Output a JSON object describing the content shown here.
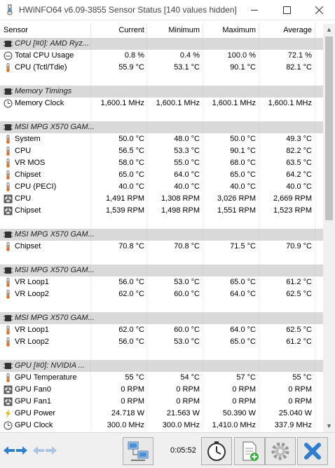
{
  "window": {
    "title": "HWiNFO64 v6.09-3855 Sensor Status [140 values hidden]"
  },
  "columns": {
    "sensor": "Sensor",
    "current": "Current",
    "minimum": "Minimum",
    "maximum": "Maximum",
    "average": "Average"
  },
  "rows": [
    {
      "type": "group",
      "icon": "chip-icon",
      "label": "CPU [#0]: AMD Ryz..."
    },
    {
      "type": "item",
      "icon": "usage-icon",
      "label": "Total CPU Usage",
      "current": "0.8 %",
      "minimum": "0.4 %",
      "maximum": "100.0 %",
      "average": "72.1 %"
    },
    {
      "type": "item",
      "icon": "thermometer-icon",
      "label": "CPU (Tctl/Tdie)",
      "current": "55.9 °C",
      "minimum": "53.1 °C",
      "maximum": "90.1 °C",
      "average": "82.1 °C"
    },
    {
      "type": "spacer"
    },
    {
      "type": "group",
      "icon": "chip-icon",
      "label": "Memory Timings"
    },
    {
      "type": "item",
      "icon": "clock-icon",
      "label": "Memory Clock",
      "current": "1,600.1 MHz",
      "minimum": "1,600.1 MHz",
      "maximum": "1,600.1 MHz",
      "average": "1,600.1 MHz"
    },
    {
      "type": "spacer"
    },
    {
      "type": "group",
      "icon": "chip-icon",
      "label": "MSI MPG X570 GAM..."
    },
    {
      "type": "item",
      "icon": "thermometer-icon",
      "label": "System",
      "current": "50.0 °C",
      "minimum": "48.0 °C",
      "maximum": "50.0 °C",
      "average": "49.3 °C"
    },
    {
      "type": "item",
      "icon": "thermometer-icon",
      "label": "CPU",
      "current": "56.5 °C",
      "minimum": "53.3 °C",
      "maximum": "90.1 °C",
      "average": "82.2 °C"
    },
    {
      "type": "item",
      "icon": "thermometer-icon",
      "label": "VR MOS",
      "current": "58.0 °C",
      "minimum": "55.0 °C",
      "maximum": "68.0 °C",
      "average": "63.5 °C"
    },
    {
      "type": "item",
      "icon": "thermometer-icon",
      "label": "Chipset",
      "current": "65.0 °C",
      "minimum": "64.0 °C",
      "maximum": "65.0 °C",
      "average": "64.2 °C"
    },
    {
      "type": "item",
      "icon": "thermometer-icon",
      "label": "CPU (PECI)",
      "current": "40.0 °C",
      "minimum": "40.0 °C",
      "maximum": "40.0 °C",
      "average": "40.0 °C"
    },
    {
      "type": "item",
      "icon": "fan-icon",
      "label": "CPU",
      "current": "1,491 RPM",
      "minimum": "1,308 RPM",
      "maximum": "3,026 RPM",
      "average": "2,669 RPM"
    },
    {
      "type": "item",
      "icon": "fan-icon",
      "label": "Chipset",
      "current": "1,539 RPM",
      "minimum": "1,498 RPM",
      "maximum": "1,551 RPM",
      "average": "1,523 RPM"
    },
    {
      "type": "spacer"
    },
    {
      "type": "group",
      "icon": "chip-icon",
      "label": "MSI MPG X570 GAM..."
    },
    {
      "type": "item",
      "icon": "thermometer-icon",
      "label": "Chipset",
      "current": "70.8 °C",
      "minimum": "70.8 °C",
      "maximum": "71.5 °C",
      "average": "70.9 °C"
    },
    {
      "type": "spacer"
    },
    {
      "type": "group",
      "icon": "chip-icon",
      "label": "MSI MPG X570 GAM..."
    },
    {
      "type": "item",
      "icon": "thermometer-icon",
      "label": "VR Loop1",
      "current": "56.0 °C",
      "minimum": "53.0 °C",
      "maximum": "65.0 °C",
      "average": "61.2 °C"
    },
    {
      "type": "item",
      "icon": "thermometer-icon",
      "label": "VR Loop2",
      "current": "62.0 °C",
      "minimum": "60.0 °C",
      "maximum": "64.0 °C",
      "average": "62.5 °C"
    },
    {
      "type": "spacer"
    },
    {
      "type": "group",
      "icon": "chip-icon",
      "label": "MSI MPG X570 GAM..."
    },
    {
      "type": "item",
      "icon": "thermometer-icon",
      "label": "VR Loop1",
      "current": "62.0 °C",
      "minimum": "60.0 °C",
      "maximum": "64.0 °C",
      "average": "62.5 °C"
    },
    {
      "type": "item",
      "icon": "thermometer-icon",
      "label": "VR Loop2",
      "current": "56.0 °C",
      "minimum": "53.0 °C",
      "maximum": "65.0 °C",
      "average": "61.2 °C"
    },
    {
      "type": "spacer"
    },
    {
      "type": "group",
      "icon": "chip-icon",
      "label": "GPU [#0]: NVIDIA ..."
    },
    {
      "type": "item",
      "icon": "thermometer-icon",
      "label": "GPU Temperature",
      "current": "55 °C",
      "minimum": "54 °C",
      "maximum": "57 °C",
      "average": "55 °C"
    },
    {
      "type": "item",
      "icon": "fan-icon",
      "label": "GPU Fan0",
      "current": "0 RPM",
      "minimum": "0 RPM",
      "maximum": "0 RPM",
      "average": "0 RPM"
    },
    {
      "type": "item",
      "icon": "fan-icon",
      "label": "GPU Fan1",
      "current": "0 RPM",
      "minimum": "0 RPM",
      "maximum": "0 RPM",
      "average": "0 RPM"
    },
    {
      "type": "item",
      "icon": "lightning-icon",
      "label": "GPU Power",
      "current": "24.718 W",
      "minimum": "21.563 W",
      "maximum": "50.390 W",
      "average": "25.040 W"
    },
    {
      "type": "item",
      "icon": "clock-icon",
      "label": "GPU Clock",
      "current": "300.0 MHz",
      "minimum": "300.0 MHz",
      "maximum": "1,410.0 MHz",
      "average": "337.9 MHz"
    }
  ],
  "toolbar": {
    "elapsed": "0:05:52"
  }
}
